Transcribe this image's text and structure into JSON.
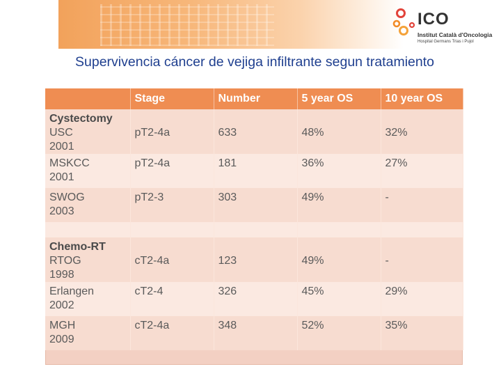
{
  "header": {
    "logo_text": "ICO",
    "institute": "Institut Català d'Oncologia",
    "hospital": "Hospital Germans Trias i Pujol"
  },
  "title": "Supervivencia cáncer de vejiga infiltrante segun tratamiento",
  "table": {
    "columns": [
      "",
      "Stage",
      "Number",
      "5 year OS",
      "10 year OS"
    ],
    "groups": [
      {
        "label": "Cystectomy",
        "rows": [
          {
            "study": "USC",
            "year": "2001",
            "stage": "pT2-4a",
            "number": "633",
            "os5": "48%",
            "os10": "32%"
          },
          {
            "study": "MSKCC",
            "year": "2001",
            "stage": "pT2-4a",
            "number": "181",
            "os5": "36%",
            "os10": "27%"
          },
          {
            "study": "SWOG",
            "year": "2003",
            "stage": "pT2-3",
            "number": "303",
            "os5": "49%",
            "os10": "-"
          }
        ]
      },
      {
        "label": "Chemo-RT",
        "rows": [
          {
            "study": "RTOG",
            "year": "1998",
            "stage": "cT2-4a",
            "number": "123",
            "os5": "49%",
            "os10": "-"
          },
          {
            "study": "Erlangen",
            "year": "2002",
            "stage": "cT2-4",
            "number": "326",
            "os5": "45%",
            "os10": "29%"
          },
          {
            "study": "MGH",
            "year": "2009",
            "stage": "cT2-4a",
            "number": "348",
            "os5": "52%",
            "os10": "35%"
          }
        ]
      }
    ]
  },
  "colors": {
    "header_bg": "#ef8d52",
    "title": "#1f3f8f",
    "row_a": "#f7dcd0",
    "row_b": "#fbe9e1"
  }
}
